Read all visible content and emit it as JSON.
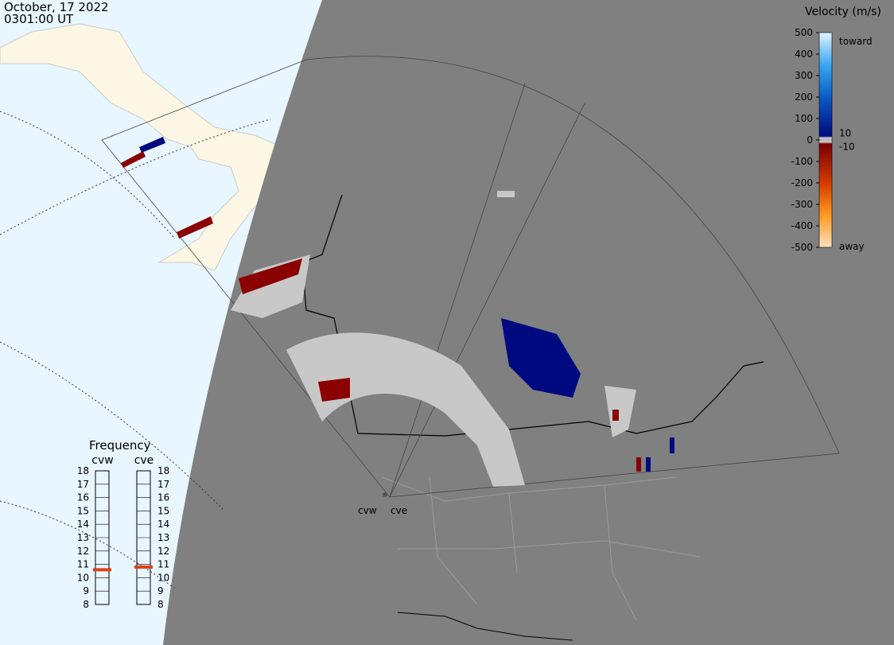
{
  "header": {
    "date": "October, 17 2022",
    "time": "0301:00 UT"
  },
  "colorbar": {
    "title": "Velocity (m/s)",
    "ylim": [
      -500,
      500
    ],
    "ticks": [
      500,
      400,
      300,
      200,
      100,
      0,
      -100,
      -200,
      -300,
      -400,
      -500
    ],
    "inner_ticks": [
      10,
      -10
    ],
    "top_label": "toward",
    "bottom_label": "away"
  },
  "frequency": {
    "title": "Frequency",
    "ylim": [
      8,
      18
    ],
    "ticks": [
      8,
      9,
      10,
      11,
      12,
      13,
      14,
      15,
      16,
      17,
      18
    ],
    "radars": [
      {
        "name": "cvw",
        "value": 10.6
      },
      {
        "name": "cve",
        "value": 10.8
      }
    ]
  },
  "map_labels": [
    "cvw",
    "cve"
  ]
}
